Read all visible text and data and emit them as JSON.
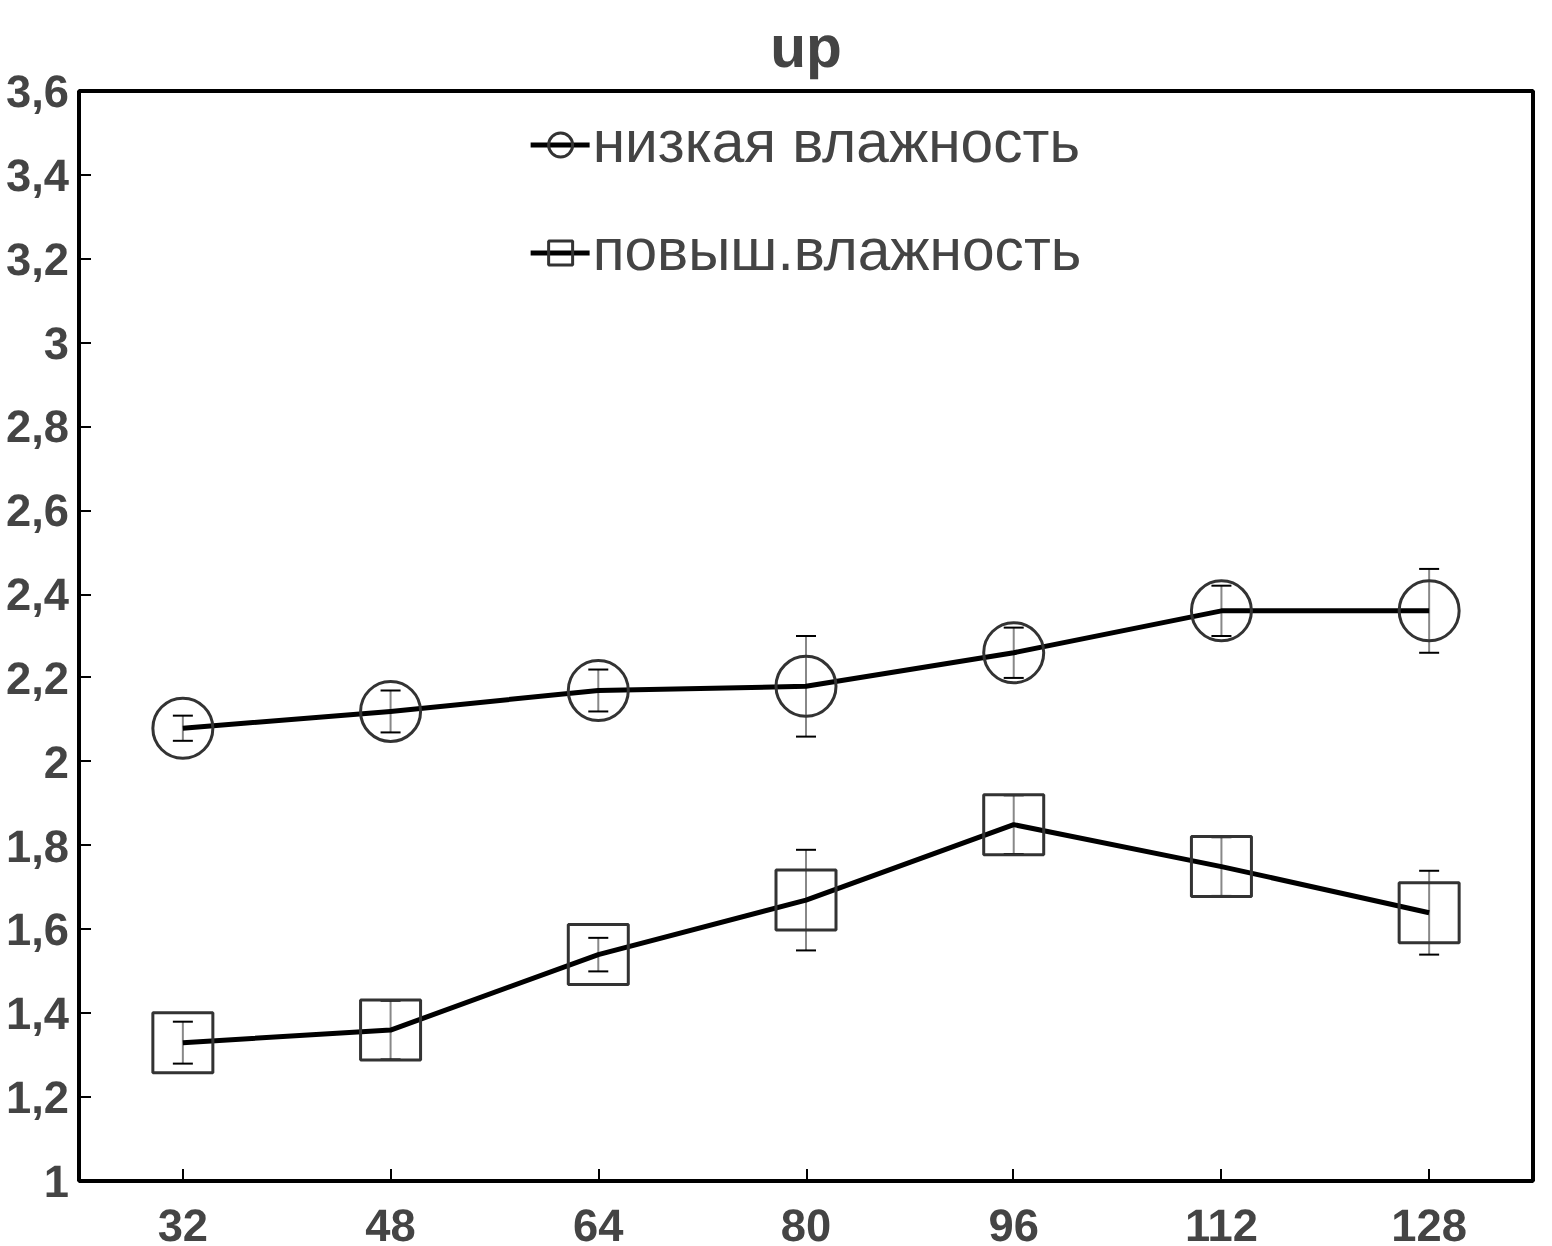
{
  "chart_data": {
    "type": "line",
    "title": "up",
    "x": [
      32,
      48,
      64,
      80,
      96,
      112,
      128
    ],
    "series": [
      {
        "name": "низкая влажность",
        "color": "#000000",
        "marker": "circle",
        "values": [
          2.08,
          2.12,
          2.17,
          2.18,
          2.26,
          2.36,
          2.36
        ],
        "errors": [
          0.03,
          0.05,
          0.05,
          0.12,
          0.06,
          0.06,
          0.1
        ]
      },
      {
        "name": "повыш.влажность",
        "color": "#000000",
        "marker": "square",
        "values": [
          1.33,
          1.36,
          1.54,
          1.67,
          1.85,
          1.75,
          1.64
        ],
        "errors": [
          0.05,
          0.07,
          0.04,
          0.12,
          0.07,
          0.07,
          0.1
        ]
      }
    ],
    "xlim": [
      24,
      136
    ],
    "xticks": [
      32,
      48,
      64,
      80,
      96,
      112,
      128
    ],
    "ylim": [
      1,
      3.6
    ],
    "yticks": [
      {
        "value": 1,
        "label": "1"
      },
      {
        "value": 1.2,
        "label": "1,2"
      },
      {
        "value": 1.4,
        "label": "1,4"
      },
      {
        "value": 1.6,
        "label": "1,6"
      },
      {
        "value": 1.8,
        "label": "1,8"
      },
      {
        "value": 2,
        "label": "2"
      },
      {
        "value": 2.2,
        "label": "2,2"
      },
      {
        "value": 2.4,
        "label": "2,4"
      },
      {
        "value": 2.6,
        "label": "2,6"
      },
      {
        "value": 2.8,
        "label": "2,8"
      },
      {
        "value": 3,
        "label": "3"
      },
      {
        "value": 3.2,
        "label": "3,2"
      },
      {
        "value": 3.4,
        "label": "3,4"
      },
      {
        "value": 3.6,
        "label": "3,6"
      }
    ],
    "grid": false,
    "legend": "top",
    "line_style": "solid"
  }
}
